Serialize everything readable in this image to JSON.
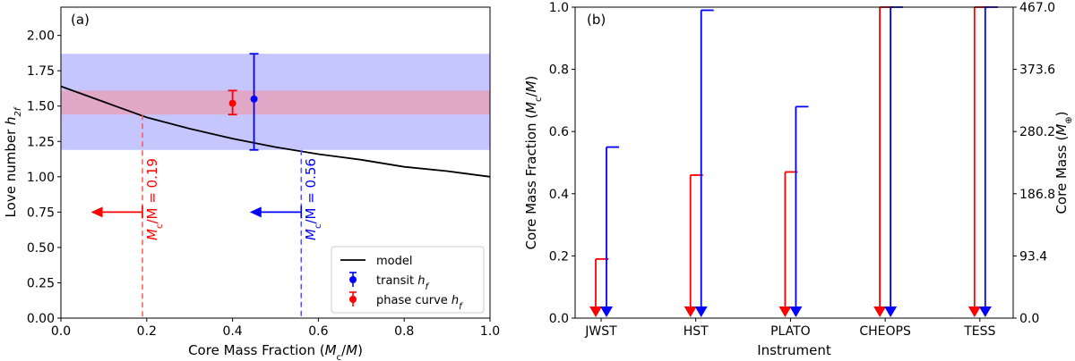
{
  "chart_data": [
    {
      "type": "line",
      "panel_label": "(a)",
      "xlabel": "Core Mass Fraction ($M_c/M$)",
      "xlabel_parts": [
        "Core Mass Fraction (",
        "M",
        "c",
        "/",
        "M",
        ")"
      ],
      "ylabel_parts": [
        "Love number ",
        "h",
        "2f"
      ],
      "xlim": [
        0.0,
        1.0
      ],
      "ylim": [
        0.0,
        2.2
      ],
      "xticks": [
        "0.0",
        "0.2",
        "0.4",
        "0.6",
        "0.8",
        "1.0"
      ],
      "yticks": [
        "0.00",
        "0.25",
        "0.50",
        "0.75",
        "1.00",
        "1.25",
        "1.50",
        "1.75",
        "2.00"
      ],
      "series": [
        {
          "name": "model",
          "color": "#000000",
          "x": [
            0.0,
            0.1,
            0.2,
            0.3,
            0.4,
            0.5,
            0.6,
            0.7,
            0.8,
            0.9,
            1.0
          ],
          "y": [
            1.64,
            1.53,
            1.42,
            1.34,
            1.27,
            1.21,
            1.16,
            1.12,
            1.07,
            1.04,
            1.0
          ]
        }
      ],
      "bands": [
        {
          "name": "transit-band",
          "color": "#8080ff",
          "opacity": 0.45,
          "ymin": 1.19,
          "ymax": 1.87
        },
        {
          "name": "phase-curve-band",
          "color": "#ff8080",
          "opacity": 0.45,
          "ymin": 1.44,
          "ymax": 1.61
        }
      ],
      "points": [
        {
          "name": "transit h_f",
          "color": "#0000ff",
          "x": 0.45,
          "y": 1.55,
          "yerr_low": 1.19,
          "yerr_high": 1.87
        },
        {
          "name": "phase curve h_f",
          "color": "#ff0000",
          "x": 0.4,
          "y": 1.52,
          "yerr_low": 1.44,
          "yerr_high": 1.61
        }
      ],
      "vlines": [
        {
          "color": "#ff5555",
          "x": 0.19,
          "y_top": 1.44,
          "label_parts": [
            "M",
            "c",
            "/M = 0.19"
          ],
          "arrow_y": 0.75,
          "arrow_x_end": 0.07
        },
        {
          "color": "#5555ff",
          "x": 0.56,
          "y_top": 1.19,
          "label_parts": [
            "M",
            "c",
            "/M = 0.56"
          ],
          "arrow_y": 0.75,
          "arrow_x_end": 0.44
        }
      ],
      "legend": {
        "position": "lower-right",
        "entries": [
          {
            "label_parts": [
              "model",
              ""
            ],
            "kind": "line",
            "color": "#000000"
          },
          {
            "label_parts": [
              "transit ",
              "h",
              "f"
            ],
            "kind": "errorbar",
            "color": "#0000ff"
          },
          {
            "label_parts": [
              "phase curve ",
              "h",
              "f"
            ],
            "kind": "errorbar",
            "color": "#ff0000"
          }
        ]
      }
    },
    {
      "type": "bar",
      "panel_label": "(b)",
      "xlabel": "Instrument",
      "ylabel_parts": [
        "Core Mass Fraction (",
        "M",
        "c",
        "/",
        "M",
        ")"
      ],
      "y2label_parts": [
        "Core Mass (",
        "M",
        "⊕",
        ")"
      ],
      "ylim": [
        0.0,
        1.0
      ],
      "yticks": [
        "0.0",
        "0.2",
        "0.4",
        "0.6",
        "0.8",
        "1.0"
      ],
      "y2ticks": [
        "0.0",
        "93.4",
        "186.8",
        "280.2",
        "373.6",
        "467.0"
      ],
      "categories": [
        "JWST",
        "HST",
        "PLATO",
        "CHEOPS",
        "TESS"
      ],
      "series": [
        {
          "name": "phase curve",
          "color": "#ff0000",
          "values": [
            0.19,
            0.46,
            0.47,
            1.0,
            1.0
          ]
        },
        {
          "name": "transit",
          "color": "#0000ff",
          "values": [
            0.55,
            0.99,
            0.68,
            1.0,
            1.0
          ]
        }
      ]
    }
  ]
}
